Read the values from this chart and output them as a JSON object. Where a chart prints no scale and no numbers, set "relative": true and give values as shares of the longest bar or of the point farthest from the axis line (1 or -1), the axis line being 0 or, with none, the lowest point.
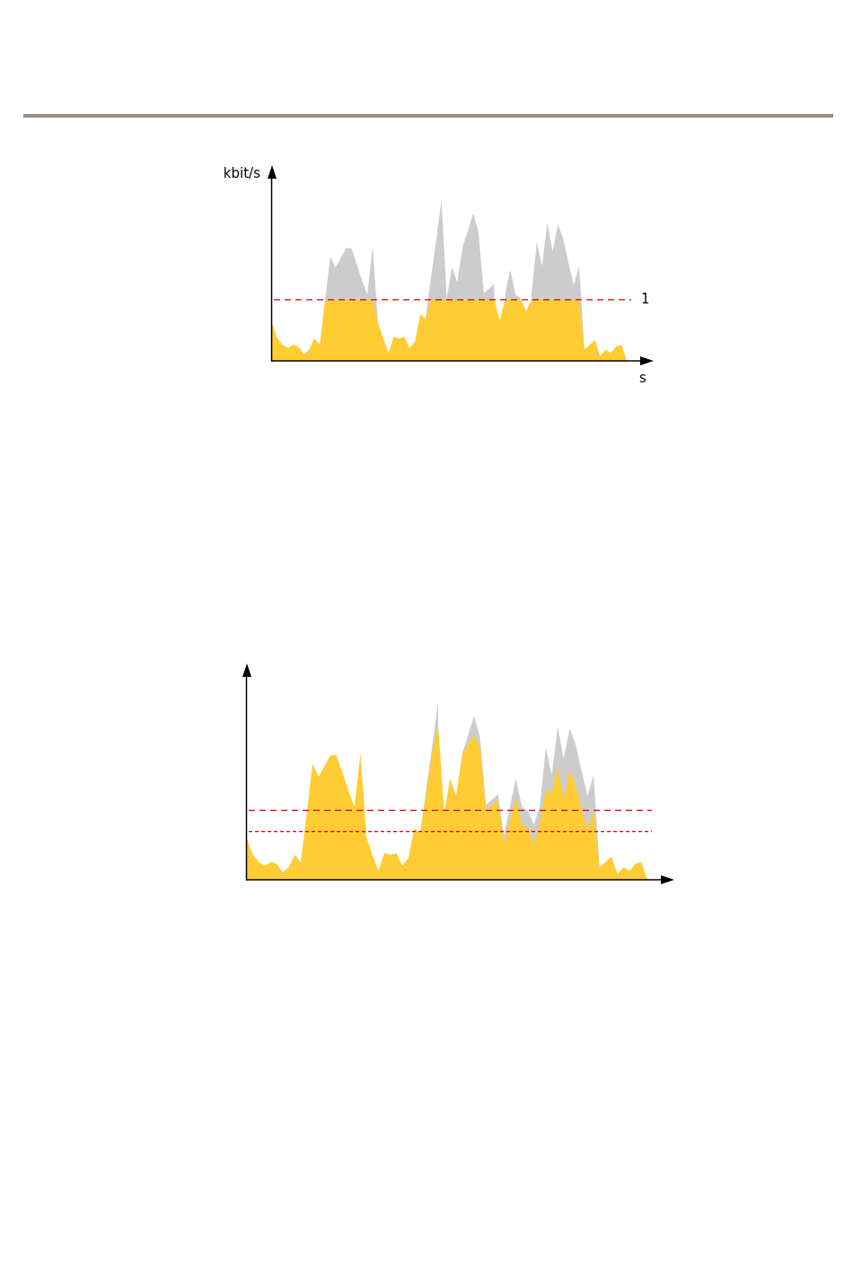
{
  "chart_data": [
    {
      "type": "area",
      "xlabel": "s",
      "ylabel": "kbit/s",
      "relative": true,
      "categories": [
        null,
        null,
        null,
        null,
        null,
        null,
        null,
        null,
        null,
        null,
        null,
        null,
        null,
        null,
        null,
        null,
        null,
        null,
        null,
        null,
        null,
        null,
        null,
        null,
        null,
        null,
        null,
        null,
        null,
        null,
        null,
        null,
        null,
        null,
        null,
        null,
        null,
        null,
        null,
        null,
        null,
        null,
        null,
        null,
        null,
        null,
        null,
        null,
        null,
        null,
        null,
        null,
        null,
        null,
        null,
        null,
        null,
        null,
        null,
        null,
        null,
        null,
        null,
        null,
        null,
        null,
        null,
        null
      ],
      "series": [
        {
          "color": "#cccccc",
          "values": [
            null,
            null,
            null,
            null,
            null,
            null,
            null,
            null,
            null,
            null,
            0.37,
            0.65,
            0.58,
            0.64,
            0.7,
            0.7,
            0.6,
            0.5,
            0.41,
            0.71,
            0.24,
            null,
            null,
            null,
            null,
            null,
            null,
            null,
            null,
            0.26,
            0.51,
            0.75,
            1,
            0.39,
            0.58,
            0.49,
            0.71,
            0.81,
            0.92,
            0.8,
            0.42,
            0.45,
            0.48,
            null,
            0.41,
            0.57,
            0.41,
            0.39,
            null,
            0.41,
            0.74,
            0.59,
            0.86,
            0.68,
            0.85,
            0.76,
            0.61,
            0.47,
            0.59,
            0.07,
            null,
            null,
            null,
            null,
            null,
            null,
            null,
            null
          ]
        },
        {
          "color": "#ffcc33",
          "values": [
            0.23,
            0.14,
            0.1,
            0.08,
            0.1,
            0.09,
            0.04,
            0.07,
            0.14,
            0.1,
            0.37,
            0.38,
            0.38,
            0.38,
            0.38,
            0.38,
            0.38,
            0.38,
            0.38,
            0.38,
            0.24,
            0.14,
            0.05,
            0.15,
            0.14,
            0.15,
            0.08,
            0.12,
            0.29,
            0.26,
            0.38,
            0.38,
            0.38,
            0.38,
            0.38,
            0.38,
            0.38,
            0.38,
            0.38,
            0.38,
            0.38,
            0.38,
            0.38,
            0.25,
            0.38,
            0.38,
            0.38,
            0.38,
            0.31,
            0.38,
            0.38,
            0.38,
            0.38,
            0.38,
            0.38,
            0.38,
            0.38,
            0.38,
            0.38,
            0.07,
            0.1,
            0.13,
            0.03,
            0.07,
            0.05,
            0.09,
            0.1,
            0
          ]
        }
      ],
      "ref_lines": [
        {
          "axis": "y",
          "value": 0.38,
          "color": "#cc0000",
          "line_style": "dashed"
        }
      ],
      "annotations": [
        "1"
      ]
    },
    {
      "type": "area",
      "relative": true,
      "categories": [
        null,
        null,
        null,
        null,
        null,
        null,
        null,
        null,
        null,
        null,
        null,
        null,
        null,
        null,
        null,
        null,
        null,
        null,
        null,
        null,
        null,
        null,
        null,
        null,
        null,
        null,
        null,
        null,
        null,
        null,
        null,
        null,
        null,
        null,
        null,
        null,
        null,
        null,
        null,
        null,
        null,
        null,
        null,
        null,
        null,
        null,
        null,
        null,
        null,
        null,
        null,
        null,
        null,
        null,
        null,
        null,
        null,
        null,
        null,
        null,
        null,
        null,
        null,
        null,
        null,
        null,
        null,
        null
      ],
      "series": [
        {
          "color": "#cccccc",
          "values": [
            null,
            null,
            null,
            null,
            null,
            null,
            null,
            null,
            null,
            null,
            null,
            null,
            null,
            null,
            null,
            null,
            null,
            null,
            null,
            null,
            null,
            null,
            null,
            null,
            null,
            null,
            null,
            null,
            null,
            0.26,
            0.51,
            0.75,
            1,
            null,
            null,
            null,
            0.71,
            0.81,
            0.92,
            0.8,
            0.42,
            0.45,
            0.48,
            0.25,
            0.41,
            0.57,
            0.41,
            0.39,
            0.31,
            0.41,
            0.74,
            0.59,
            0.86,
            0.68,
            0.85,
            0.76,
            0.61,
            0.47,
            0.59,
            0.07,
            null,
            null,
            null,
            null,
            null,
            null,
            null,
            null
          ]
        },
        {
          "color": "#ffcc33",
          "values": [
            0.23,
            0.14,
            0.1,
            0.08,
            0.1,
            0.09,
            0.04,
            0.07,
            0.14,
            0.1,
            0.37,
            0.65,
            0.58,
            0.64,
            0.7,
            0.7,
            0.6,
            0.5,
            0.41,
            0.71,
            0.24,
            0.14,
            0.05,
            0.15,
            0.14,
            0.15,
            0.08,
            0.12,
            0.29,
            0.26,
            0.49,
            0.71,
            0.87,
            0.38,
            0.57,
            0.47,
            0.7,
            0.76,
            0.81,
            0.74,
            0.39,
            0.42,
            0.45,
            0.2,
            0.33,
            0.46,
            0.31,
            0.29,
            0.2,
            0.32,
            0.5,
            0.49,
            0.63,
            0.45,
            0.62,
            0.53,
            0.4,
            0.28,
            0.39,
            0.07,
            0.1,
            0.13,
            0.03,
            0.07,
            0.05,
            0.09,
            0.1,
            0
          ]
        }
      ],
      "ref_lines": [
        {
          "axis": "y",
          "value": 0.39,
          "color": "#cc0000",
          "line_style": "dashed"
        },
        {
          "axis": "y",
          "value": 0.27,
          "color": "#cc0000",
          "line_style": "dotted"
        }
      ]
    }
  ]
}
